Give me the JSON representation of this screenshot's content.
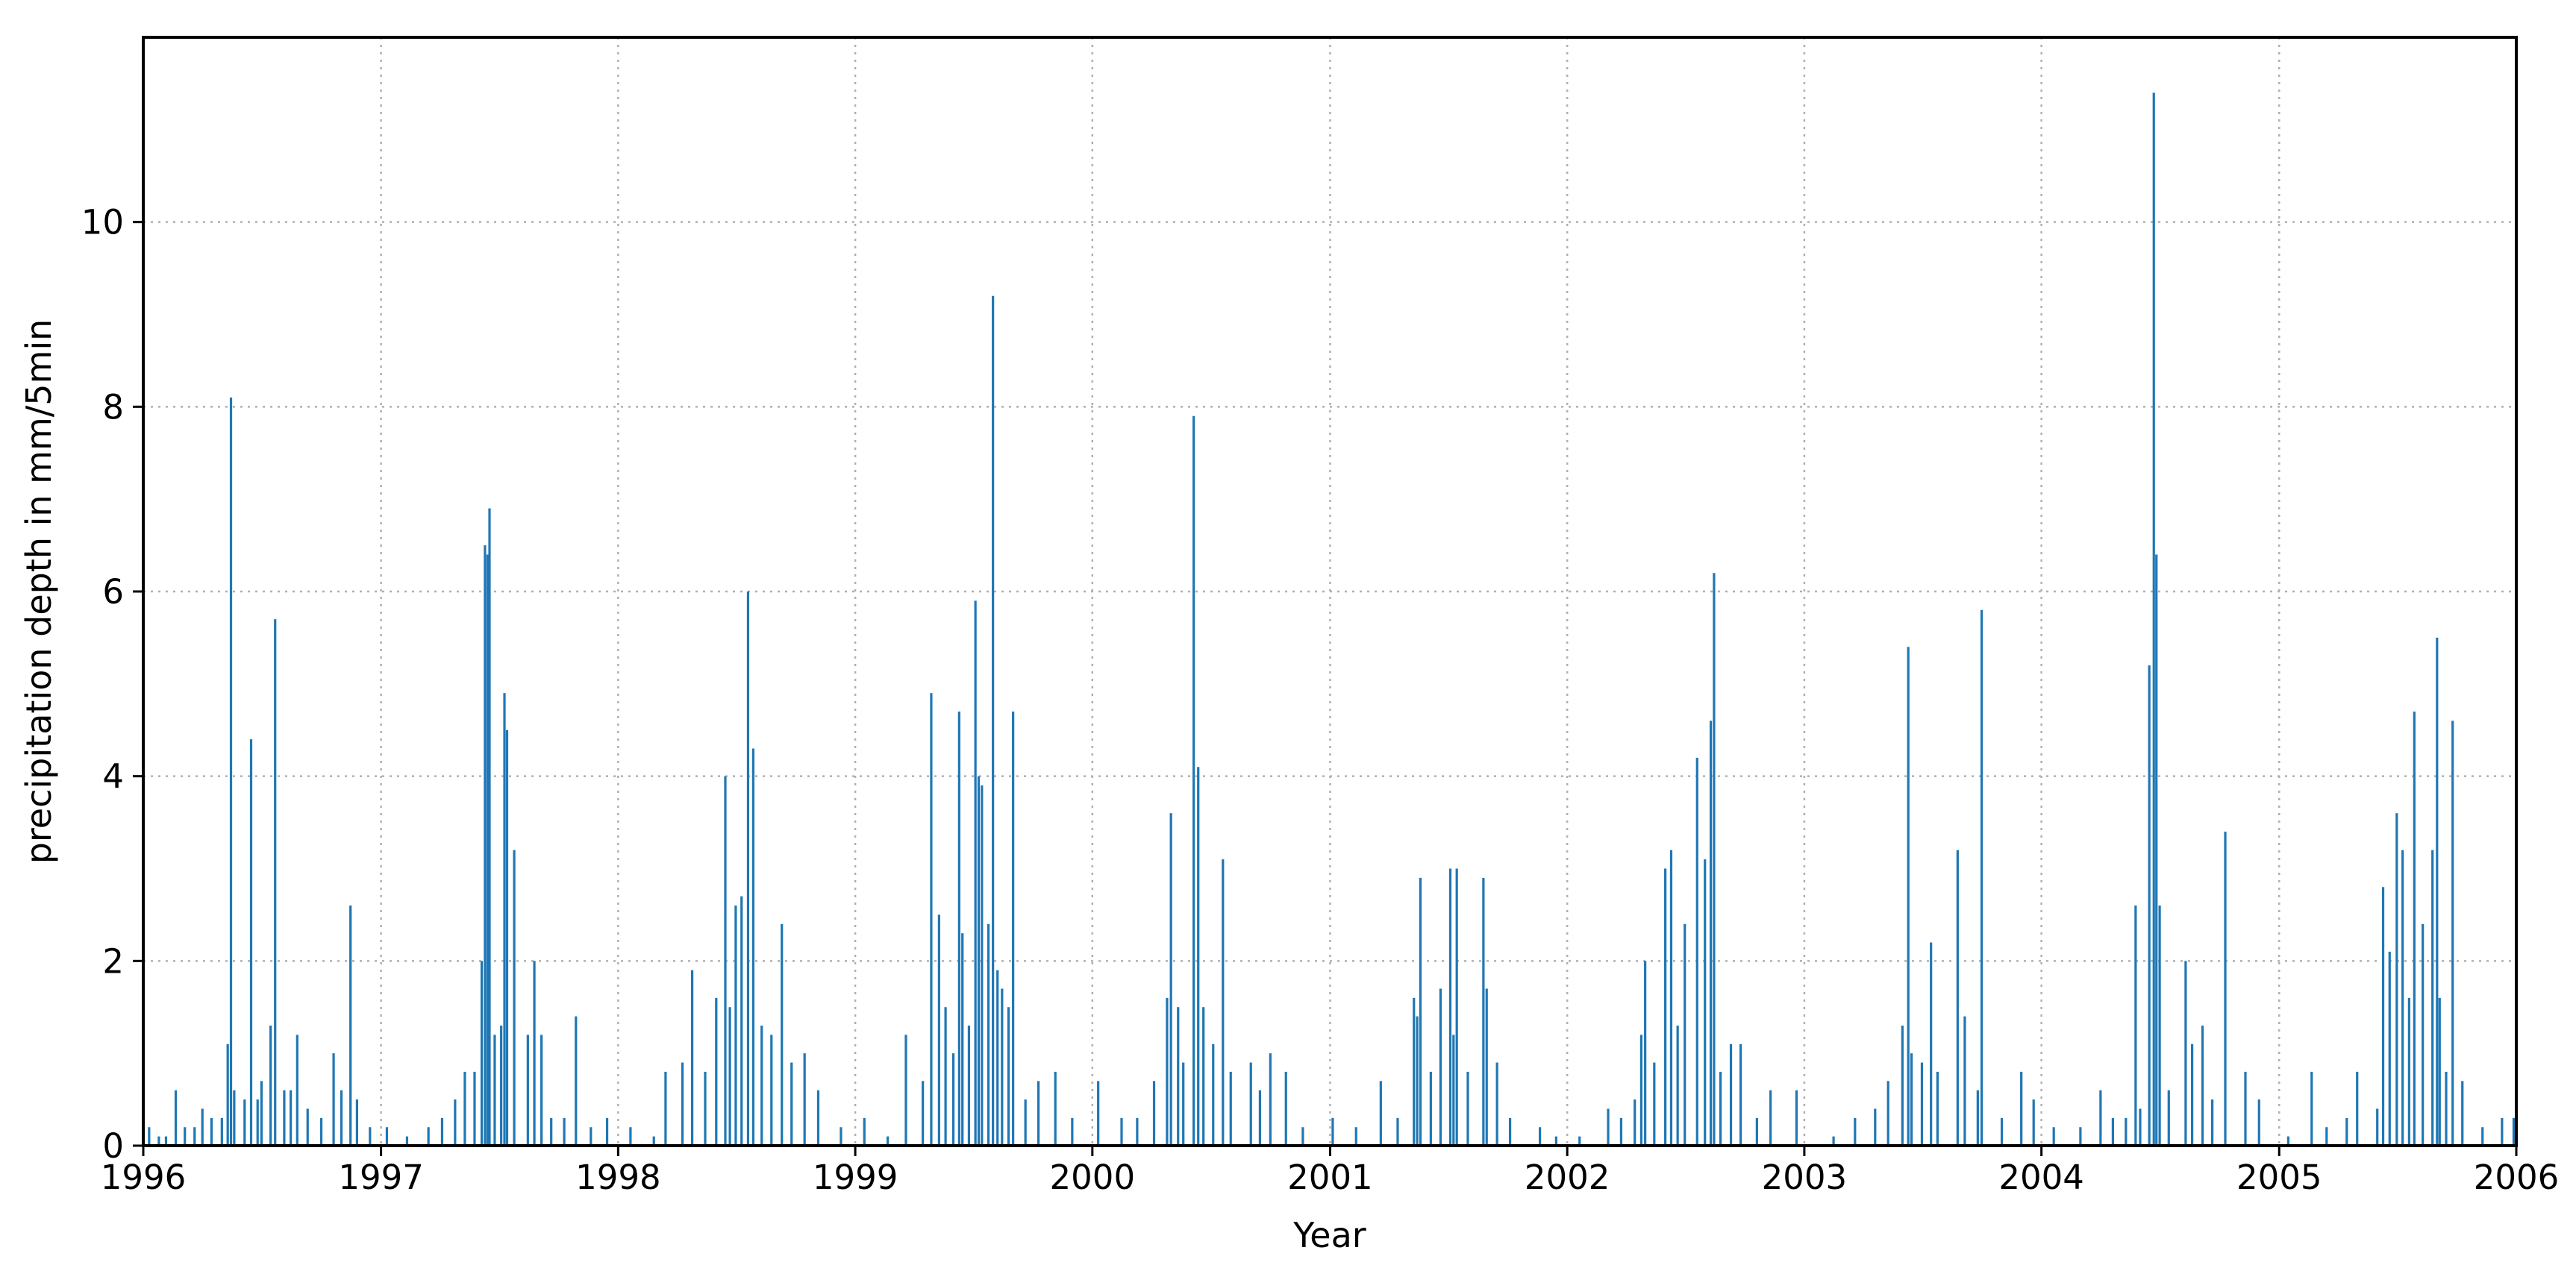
{
  "chart_data": {
    "type": "bar",
    "title": "",
    "xlabel": "Year",
    "ylabel": "precipitation depth in mm/5min",
    "xlim": [
      "1996-01-01",
      "2006-01-01"
    ],
    "ylim": [
      0,
      12
    ],
    "xticks": [
      "1996",
      "1997",
      "1998",
      "1999",
      "2000",
      "2001",
      "2002",
      "2003",
      "2004",
      "2005",
      "2006"
    ],
    "yticks": [
      0,
      2,
      4,
      6,
      8,
      10
    ],
    "grid": true,
    "legend": "none",
    "color": "#1f77b4",
    "points": [
      [
        "1996-01-10",
        0.2
      ],
      [
        "1996-01-25",
        0.1
      ],
      [
        "1996-02-05",
        0.1
      ],
      [
        "1996-02-20",
        0.6
      ],
      [
        "1996-03-05",
        0.2
      ],
      [
        "1996-03-20",
        0.2
      ],
      [
        "1996-04-01",
        0.4
      ],
      [
        "1996-04-15",
        0.3
      ],
      [
        "1996-05-01",
        0.3
      ],
      [
        "1996-05-10",
        1.1
      ],
      [
        "1996-05-15",
        8.1
      ],
      [
        "1996-05-20",
        0.6
      ],
      [
        "1996-06-05",
        0.5
      ],
      [
        "1996-06-15",
        4.4
      ],
      [
        "1996-06-25",
        0.5
      ],
      [
        "1996-07-01",
        0.7
      ],
      [
        "1996-07-15",
        1.3
      ],
      [
        "1996-07-22",
        5.7
      ],
      [
        "1996-08-05",
        0.6
      ],
      [
        "1996-08-15",
        0.6
      ],
      [
        "1996-08-25",
        1.2
      ],
      [
        "1996-09-10",
        0.4
      ],
      [
        "1996-10-01",
        0.3
      ],
      [
        "1996-10-20",
        1.0
      ],
      [
        "1996-11-01",
        0.6
      ],
      [
        "1996-11-15",
        2.6
      ],
      [
        "1996-11-25",
        0.5
      ],
      [
        "1996-12-15",
        0.2
      ],
      [
        "1997-01-10",
        0.2
      ],
      [
        "1997-02-10",
        0.1
      ],
      [
        "1997-03-15",
        0.2
      ],
      [
        "1997-04-05",
        0.3
      ],
      [
        "1997-04-25",
        0.5
      ],
      [
        "1997-05-10",
        0.8
      ],
      [
        "1997-05-25",
        0.8
      ],
      [
        "1997-06-05",
        2.0
      ],
      [
        "1997-06-10",
        6.5
      ],
      [
        "1997-06-14",
        6.4
      ],
      [
        "1997-06-17",
        6.9
      ],
      [
        "1997-06-25",
        1.2
      ],
      [
        "1997-07-05",
        1.3
      ],
      [
        "1997-07-10",
        4.9
      ],
      [
        "1997-07-14",
        4.5
      ],
      [
        "1997-07-25",
        3.2
      ],
      [
        "1997-08-15",
        1.2
      ],
      [
        "1997-08-25",
        2.0
      ],
      [
        "1997-09-05",
        1.2
      ],
      [
        "1997-09-20",
        0.3
      ],
      [
        "1997-10-10",
        0.3
      ],
      [
        "1997-10-28",
        1.4
      ],
      [
        "1997-11-20",
        0.2
      ],
      [
        "1997-12-15",
        0.3
      ],
      [
        "1998-01-20",
        0.2
      ],
      [
        "1998-02-25",
        0.1
      ],
      [
        "1998-03-15",
        0.8
      ],
      [
        "1998-04-10",
        0.9
      ],
      [
        "1998-04-25",
        1.9
      ],
      [
        "1998-05-15",
        0.8
      ],
      [
        "1998-06-01",
        1.6
      ],
      [
        "1998-06-15",
        4.0
      ],
      [
        "1998-06-22",
        1.5
      ],
      [
        "1998-07-01",
        2.6
      ],
      [
        "1998-07-10",
        2.7
      ],
      [
        "1998-07-20",
        6.0
      ],
      [
        "1998-07-28",
        4.3
      ],
      [
        "1998-08-10",
        1.3
      ],
      [
        "1998-08-25",
        1.2
      ],
      [
        "1998-09-10",
        2.4
      ],
      [
        "1998-09-25",
        0.9
      ],
      [
        "1998-10-15",
        1.0
      ],
      [
        "1998-11-05",
        0.6
      ],
      [
        "1998-12-10",
        0.2
      ],
      [
        "1999-01-15",
        0.3
      ],
      [
        "1999-02-20",
        0.1
      ],
      [
        "1999-03-20",
        1.2
      ],
      [
        "1999-04-15",
        0.7
      ],
      [
        "1999-04-28",
        4.9
      ],
      [
        "1999-05-10",
        2.5
      ],
      [
        "1999-05-20",
        1.5
      ],
      [
        "1999-06-01",
        1.0
      ],
      [
        "1999-06-10",
        4.7
      ],
      [
        "1999-06-15",
        2.3
      ],
      [
        "1999-06-25",
        1.3
      ],
      [
        "1999-07-05",
        5.9
      ],
      [
        "1999-07-10",
        4.0
      ],
      [
        "1999-07-15",
        3.9
      ],
      [
        "1999-07-25",
        2.4
      ],
      [
        "1999-08-01",
        9.2
      ],
      [
        "1999-08-08",
        1.9
      ],
      [
        "1999-08-15",
        1.7
      ],
      [
        "1999-08-25",
        1.5
      ],
      [
        "1999-09-01",
        4.7
      ],
      [
        "1999-09-20",
        0.5
      ],
      [
        "1999-10-10",
        0.7
      ],
      [
        "1999-11-05",
        0.8
      ],
      [
        "1999-12-01",
        0.3
      ],
      [
        "2000-01-10",
        0.7
      ],
      [
        "2000-02-15",
        0.3
      ],
      [
        "2000-03-10",
        0.3
      ],
      [
        "2000-04-05",
        0.7
      ],
      [
        "2000-04-25",
        1.6
      ],
      [
        "2000-05-01",
        3.6
      ],
      [
        "2000-05-12",
        1.5
      ],
      [
        "2000-05-20",
        0.9
      ],
      [
        "2000-06-05",
        7.9
      ],
      [
        "2000-06-12",
        4.1
      ],
      [
        "2000-06-20",
        1.5
      ],
      [
        "2000-07-05",
        1.1
      ],
      [
        "2000-07-20",
        3.1
      ],
      [
        "2000-08-01",
        0.8
      ],
      [
        "2000-09-01",
        0.9
      ],
      [
        "2000-09-15",
        0.6
      ],
      [
        "2000-10-01",
        1.0
      ],
      [
        "2000-10-25",
        0.8
      ],
      [
        "2000-11-20",
        0.2
      ],
      [
        "2001-01-05",
        0.3
      ],
      [
        "2001-02-10",
        0.2
      ],
      [
        "2001-03-20",
        0.7
      ],
      [
        "2001-04-15",
        0.3
      ],
      [
        "2001-05-10",
        1.6
      ],
      [
        "2001-05-15",
        1.4
      ],
      [
        "2001-05-20",
        2.9
      ],
      [
        "2001-06-05",
        0.8
      ],
      [
        "2001-06-20",
        1.7
      ],
      [
        "2001-07-05",
        3.0
      ],
      [
        "2001-07-10",
        1.2
      ],
      [
        "2001-07-15",
        3.0
      ],
      [
        "2001-08-01",
        0.8
      ],
      [
        "2001-08-25",
        2.9
      ],
      [
        "2001-08-30",
        1.7
      ],
      [
        "2001-09-15",
        0.9
      ],
      [
        "2001-10-05",
        0.3
      ],
      [
        "2001-11-20",
        0.2
      ],
      [
        "2001-12-15",
        0.1
      ],
      [
        "2002-01-20",
        0.1
      ],
      [
        "2002-03-05",
        0.4
      ],
      [
        "2002-03-25",
        0.3
      ],
      [
        "2002-04-15",
        0.5
      ],
      [
        "2002-04-25",
        1.2
      ],
      [
        "2002-05-01",
        2.0
      ],
      [
        "2002-05-15",
        0.9
      ],
      [
        "2002-06-01",
        3.0
      ],
      [
        "2002-06-10",
        3.2
      ],
      [
        "2002-06-20",
        1.3
      ],
      [
        "2002-07-01",
        2.4
      ],
      [
        "2002-07-20",
        4.2
      ],
      [
        "2002-08-01",
        3.1
      ],
      [
        "2002-08-10",
        4.6
      ],
      [
        "2002-08-15",
        6.2
      ],
      [
        "2002-08-25",
        0.8
      ],
      [
        "2002-09-10",
        1.1
      ],
      [
        "2002-09-25",
        1.1
      ],
      [
        "2002-10-20",
        0.3
      ],
      [
        "2002-11-10",
        0.6
      ],
      [
        "2002-12-20",
        0.6
      ],
      [
        "2003-02-15",
        0.1
      ],
      [
        "2003-03-20",
        0.3
      ],
      [
        "2003-04-20",
        0.4
      ],
      [
        "2003-05-10",
        0.7
      ],
      [
        "2003-06-01",
        1.3
      ],
      [
        "2003-06-10",
        5.4
      ],
      [
        "2003-06-15",
        1.0
      ],
      [
        "2003-07-01",
        0.9
      ],
      [
        "2003-07-15",
        2.2
      ],
      [
        "2003-07-25",
        0.8
      ],
      [
        "2003-08-25",
        3.2
      ],
      [
        "2003-09-05",
        1.4
      ],
      [
        "2003-09-25",
        0.6
      ],
      [
        "2003-10-01",
        5.8
      ],
      [
        "2003-11-01",
        0.3
      ],
      [
        "2003-12-01",
        0.8
      ],
      [
        "2003-12-20",
        0.5
      ],
      [
        "2004-01-20",
        0.2
      ],
      [
        "2004-03-01",
        0.2
      ],
      [
        "2004-04-01",
        0.6
      ],
      [
        "2004-04-20",
        0.3
      ],
      [
        "2004-05-10",
        0.3
      ],
      [
        "2004-05-25",
        2.6
      ],
      [
        "2004-06-01",
        0.4
      ],
      [
        "2004-06-15",
        5.2
      ],
      [
        "2004-06-22",
        11.4
      ],
      [
        "2004-06-26",
        6.4
      ],
      [
        "2004-07-01",
        2.6
      ],
      [
        "2004-07-15",
        0.6
      ],
      [
        "2004-08-10",
        2.0
      ],
      [
        "2004-08-20",
        1.1
      ],
      [
        "2004-09-05",
        1.3
      ],
      [
        "2004-09-20",
        0.5
      ],
      [
        "2004-10-10",
        3.4
      ],
      [
        "2004-11-10",
        0.8
      ],
      [
        "2004-12-01",
        0.5
      ],
      [
        "2005-01-15",
        0.1
      ],
      [
        "2005-02-20",
        0.8
      ],
      [
        "2005-03-15",
        0.2
      ],
      [
        "2005-04-15",
        0.3
      ],
      [
        "2005-05-01",
        0.8
      ],
      [
        "2005-06-01",
        0.4
      ],
      [
        "2005-06-10",
        2.8
      ],
      [
        "2005-06-20",
        2.1
      ],
      [
        "2005-07-01",
        3.6
      ],
      [
        "2005-07-10",
        3.2
      ],
      [
        "2005-07-20",
        1.6
      ],
      [
        "2005-07-28",
        4.7
      ],
      [
        "2005-08-10",
        2.4
      ],
      [
        "2005-08-25",
        3.2
      ],
      [
        "2005-09-01",
        5.5
      ],
      [
        "2005-09-05",
        1.6
      ],
      [
        "2005-09-15",
        0.8
      ],
      [
        "2005-09-25",
        4.6
      ],
      [
        "2005-10-10",
        0.7
      ],
      [
        "2005-11-10",
        0.2
      ],
      [
        "2005-12-10",
        0.3
      ],
      [
        "2005-12-28",
        0.3
      ]
    ]
  }
}
